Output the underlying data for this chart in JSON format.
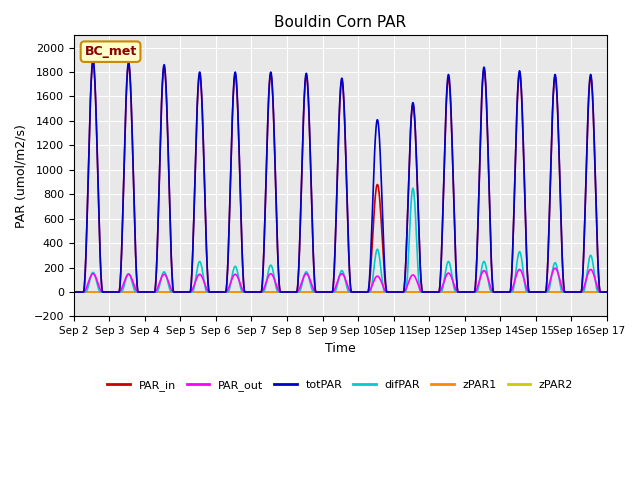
{
  "title": "Bouldin Corn PAR",
  "xlabel": "Time",
  "ylabel": "PAR (umol/m2/s)",
  "ylim": [
    -200,
    2100
  ],
  "yticks": [
    -200,
    0,
    200,
    400,
    600,
    800,
    1000,
    1200,
    1400,
    1600,
    1800,
    2000
  ],
  "n_days": 15,
  "xtick_positions": [
    0,
    1,
    2,
    3,
    4,
    5,
    6,
    7,
    8,
    9,
    10,
    11,
    12,
    13,
    14,
    15
  ],
  "xtick_labels": [
    "Sep 2",
    "Sep 3",
    "Sep 4",
    "Sep 5",
    "Sep 6",
    "Sep 7",
    "Sep 8",
    "Sep 9",
    "Sep 10",
    "Sep 11",
    "Sep 12",
    "Sep 13",
    "Sep 14",
    "Sep 15",
    "Sep 16",
    "Sep 17"
  ],
  "bg_color": "#e8e8e8",
  "legend_label": "BC_met",
  "legend_bg": "#ffffcc",
  "legend_border": "#cc8800",
  "series": {
    "PAR_in": {
      "color": "#cc0000",
      "lw": 1.2
    },
    "PAR_out": {
      "color": "#ff00ff",
      "lw": 1.2
    },
    "totPAR": {
      "color": "#0000cc",
      "lw": 1.2
    },
    "difPAR": {
      "color": "#00cccc",
      "lw": 1.2
    },
    "zPAR1": {
      "color": "#ff8800",
      "lw": 1.2
    },
    "zPAR2": {
      "color": "#cccc00",
      "lw": 1.2
    }
  },
  "totPAR_peaks": [
    1900,
    1880,
    1860,
    1800,
    1800,
    1800,
    1790,
    1750,
    1410,
    1550,
    1780,
    1840,
    1810,
    1780,
    1780
  ],
  "PAR_in_peaks": [
    1880,
    1860,
    1840,
    1780,
    1780,
    1780,
    1770,
    1730,
    880,
    1530,
    1750,
    1820,
    1790,
    1760,
    1760
  ],
  "PAR_out_peaks": [
    150,
    145,
    145,
    145,
    145,
    150,
    150,
    150,
    130,
    140,
    155,
    175,
    185,
    195,
    185
  ],
  "difPAR_peaks": [
    160,
    150,
    165,
    250,
    210,
    220,
    165,
    175,
    350,
    850,
    250,
    250,
    330,
    240,
    300
  ],
  "legend_items": [
    {
      "label": "PAR_in",
      "color": "#cc0000"
    },
    {
      "label": "PAR_out",
      "color": "#ff00ff"
    },
    {
      "label": "totPAR",
      "color": "#0000cc"
    },
    {
      "label": "difPAR",
      "color": "#00cccc"
    },
    {
      "label": "zPAR1",
      "color": "#ff8800"
    },
    {
      "label": "zPAR2",
      "color": "#cccc00"
    }
  ]
}
